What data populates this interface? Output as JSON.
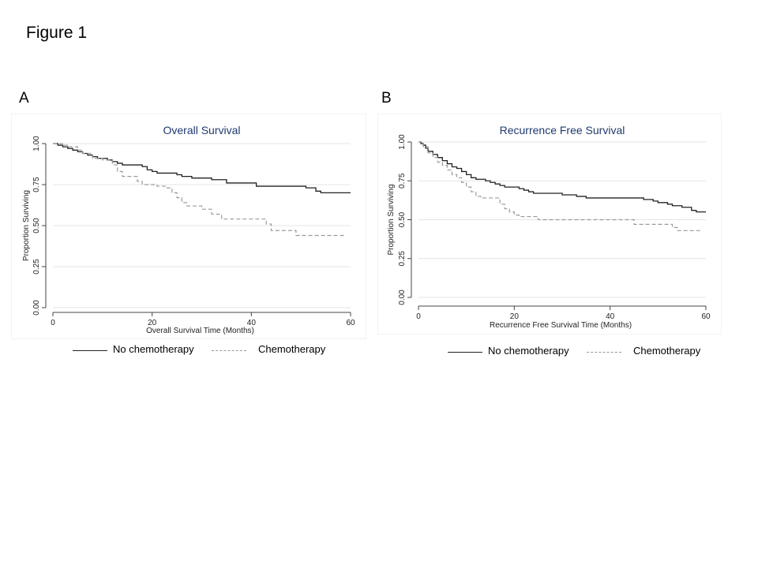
{
  "figure_title": "Figure 1",
  "chart_data": [
    {
      "panel_label": "A",
      "type": "line",
      "step": true,
      "title": "Overall Survival",
      "xlabel": "Overall Survival Time (Months)",
      "ylabel": "Proportion Surviving",
      "xlim": [
        0,
        60
      ],
      "ylim": [
        0,
        1
      ],
      "x_ticks": [
        "0",
        "20",
        "40",
        "60"
      ],
      "y_ticks": [
        "0.00",
        "0.25",
        "0.50",
        "0.75",
        "1.00"
      ],
      "grid": true,
      "legend_position": "bottom",
      "title_color": "#1f3a6e",
      "series": [
        {
          "name": "No chemotherapy",
          "color": "#222222",
          "style": "solid",
          "points": [
            [
              0,
              1.0
            ],
            [
              1,
              0.99
            ],
            [
              2,
              0.98
            ],
            [
              3,
              0.97
            ],
            [
              4,
              0.96
            ],
            [
              5,
              0.95
            ],
            [
              6,
              0.94
            ],
            [
              7,
              0.93
            ],
            [
              8,
              0.92
            ],
            [
              9,
              0.91
            ],
            [
              11,
              0.9
            ],
            [
              12,
              0.89
            ],
            [
              13,
              0.88
            ],
            [
              14,
              0.87
            ],
            [
              18,
              0.86
            ],
            [
              19,
              0.84
            ],
            [
              20,
              0.83
            ],
            [
              21,
              0.82
            ],
            [
              25,
              0.81
            ],
            [
              26,
              0.8
            ],
            [
              28,
              0.79
            ],
            [
              32,
              0.78
            ],
            [
              35,
              0.76
            ],
            [
              41,
              0.74
            ],
            [
              51,
              0.73
            ],
            [
              53,
              0.71
            ],
            [
              54,
              0.7
            ],
            [
              60,
              0.7
            ]
          ]
        },
        {
          "name": "Chemotherapy",
          "color": "#9a9a9a",
          "style": "dashed",
          "points": [
            [
              0,
              1.0
            ],
            [
              2,
              0.99
            ],
            [
              3,
              0.98
            ],
            [
              5,
              0.96
            ],
            [
              6,
              0.94
            ],
            [
              8,
              0.91
            ],
            [
              10,
              0.9
            ],
            [
              12,
              0.87
            ],
            [
              13,
              0.83
            ],
            [
              14,
              0.8
            ],
            [
              17,
              0.77
            ],
            [
              18,
              0.75
            ],
            [
              21,
              0.74
            ],
            [
              23,
              0.73
            ],
            [
              24,
              0.7
            ],
            [
              25,
              0.67
            ],
            [
              26,
              0.64
            ],
            [
              27,
              0.62
            ],
            [
              30,
              0.6
            ],
            [
              32,
              0.57
            ],
            [
              34,
              0.54
            ],
            [
              43,
              0.51
            ],
            [
              44,
              0.47
            ],
            [
              49,
              0.44
            ],
            [
              59,
              0.44
            ]
          ]
        }
      ]
    },
    {
      "panel_label": "B",
      "type": "line",
      "step": true,
      "title": "Recurrence Free Survival",
      "xlabel": "Recurrence Free Survival Time (Months)",
      "ylabel": "Proportion Surviving",
      "xlim": [
        0,
        60
      ],
      "ylim": [
        0,
        1
      ],
      "x_ticks": [
        "0",
        "20",
        "40",
        "60"
      ],
      "y_ticks": [
        "0.00",
        "0.25",
        "0.50",
        "0.75",
        "1.00"
      ],
      "grid": true,
      "legend_position": "bottom",
      "title_color": "#1f3a6e",
      "series": [
        {
          "name": "No chemotherapy",
          "color": "#222222",
          "style": "solid",
          "points": [
            [
              0,
              1.0
            ],
            [
              0.5,
              0.99
            ],
            [
              1,
              0.98
            ],
            [
              1.5,
              0.96
            ],
            [
              2,
              0.94
            ],
            [
              3,
              0.92
            ],
            [
              4,
              0.9
            ],
            [
              5,
              0.88
            ],
            [
              6,
              0.86
            ],
            [
              7,
              0.84
            ],
            [
              8,
              0.83
            ],
            [
              9,
              0.81
            ],
            [
              10,
              0.79
            ],
            [
              11,
              0.77
            ],
            [
              12,
              0.76
            ],
            [
              14,
              0.75
            ],
            [
              15,
              0.74
            ],
            [
              16,
              0.73
            ],
            [
              17,
              0.72
            ],
            [
              18,
              0.71
            ],
            [
              21,
              0.7
            ],
            [
              22,
              0.69
            ],
            [
              23,
              0.68
            ],
            [
              24,
              0.67
            ],
            [
              30,
              0.66
            ],
            [
              33,
              0.65
            ],
            [
              35,
              0.64
            ],
            [
              47,
              0.63
            ],
            [
              49,
              0.62
            ],
            [
              50,
              0.61
            ],
            [
              52,
              0.6
            ],
            [
              53,
              0.59
            ],
            [
              55,
              0.58
            ],
            [
              57,
              0.56
            ],
            [
              58,
              0.55
            ],
            [
              60,
              0.55
            ]
          ]
        },
        {
          "name": "Chemotherapy",
          "color": "#9a9a9a",
          "style": "dashed",
          "points": [
            [
              0,
              1.0
            ],
            [
              1,
              0.97
            ],
            [
              2,
              0.93
            ],
            [
              3,
              0.9
            ],
            [
              4,
              0.87
            ],
            [
              5,
              0.85
            ],
            [
              6,
              0.82
            ],
            [
              7,
              0.79
            ],
            [
              8,
              0.77
            ],
            [
              9,
              0.74
            ],
            [
              10,
              0.71
            ],
            [
              11,
              0.68
            ],
            [
              12,
              0.65
            ],
            [
              13,
              0.64
            ],
            [
              17,
              0.6
            ],
            [
              18,
              0.57
            ],
            [
              19,
              0.55
            ],
            [
              20,
              0.53
            ],
            [
              21,
              0.52
            ],
            [
              25,
              0.5
            ],
            [
              26,
              0.5
            ],
            [
              44,
              0.5
            ],
            [
              45,
              0.47
            ],
            [
              53,
              0.45
            ],
            [
              54,
              0.43
            ],
            [
              59,
              0.43
            ]
          ]
        }
      ]
    }
  ]
}
